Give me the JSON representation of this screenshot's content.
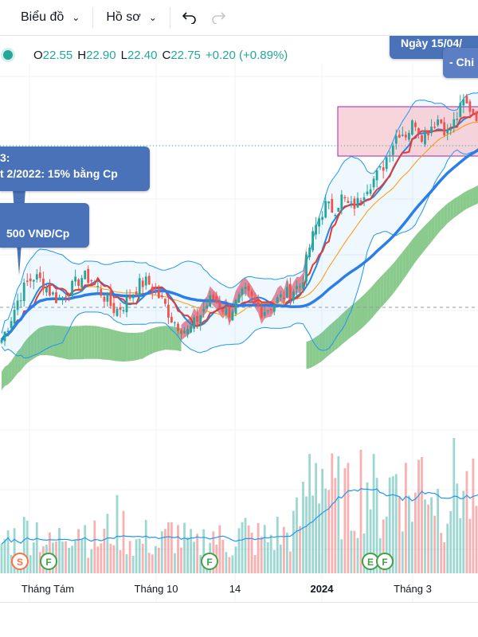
{
  "toolbar": {
    "chart_menu_label": "Biểu đồ",
    "profile_menu_label": "Hồ sơ",
    "undo_icon": "undo-icon",
    "redo_icon": "redo-icon",
    "chevron_icon": "chevron-down-icon"
  },
  "legend": {
    "open_key": "O",
    "open": "22.55",
    "high_key": "H",
    "high": "22.90",
    "low_key": "L",
    "low": "22.40",
    "close_key": "C",
    "close": "22.75",
    "change": "+0.20 (+0.89%)"
  },
  "callouts": {
    "top_right": "Ngày 15/04/",
    "top_right_sub": "- Chi",
    "dividend_line1": "3:",
    "dividend_line2": "t 2/2022: 15% bằng Cp",
    "cash_dividend": "500 VNĐ/Cp"
  },
  "colors": {
    "up": "#26a69a",
    "down": "#ef5350",
    "bollinger": "#2196f3",
    "ichimoku_bull": "#4caf50",
    "ichimoku_bear": "#e53950",
    "callout_bg": "#4a72b8",
    "zone_fill": "#f6c7cf",
    "zone_border": "#9c27b0"
  },
  "chart_data": {
    "type": "candlestick",
    "x_tick_labels": [
      "Tháng Tám",
      "Tháng 10",
      "14",
      "2024",
      "Tháng 3"
    ],
    "price_path": [
      17.5,
      18.2,
      19.0,
      19.6,
      19.9,
      19.7,
      19.3,
      19.0,
      19.2,
      19.6,
      19.9,
      19.8,
      19.4,
      19.0,
      18.6,
      18.8,
      19.2,
      19.6,
      19.7,
      19.3,
      18.9,
      18.3,
      18.0,
      17.8,
      18.2,
      18.7,
      19.1,
      18.8,
      18.5,
      18.9,
      19.3,
      19.0,
      18.6,
      18.7,
      19.0,
      19.2,
      19.4,
      19.6,
      21.0,
      22.0,
      22.6,
      22.4,
      22.9,
      22.5,
      22.7,
      23.3,
      23.6,
      24.0,
      24.8,
      25.4,
      25.3,
      25.8,
      25.2,
      25.6,
      25.9,
      25.3,
      25.8,
      26.5,
      26.2,
      25.9
    ],
    "volume_path": [
      0.25,
      0.3,
      0.28,
      0.35,
      0.4,
      0.3,
      0.22,
      0.27,
      0.36,
      0.45,
      0.38,
      0.3,
      0.26,
      0.33,
      0.42,
      0.37,
      0.28,
      0.24,
      0.3,
      0.22,
      0.26,
      0.34,
      0.3,
      0.25,
      0.2,
      0.28,
      0.32,
      0.27,
      0.22,
      0.3,
      0.35,
      0.26,
      0.3,
      0.28,
      0.33,
      0.3,
      0.38,
      0.45,
      0.85,
      1.0,
      0.78,
      0.6,
      0.65,
      0.55,
      0.72,
      0.8,
      0.62,
      0.55,
      0.7,
      0.88,
      0.66,
      0.6,
      0.95,
      0.75,
      0.58,
      0.62,
      0.82,
      0.7,
      0.6,
      0.55
    ],
    "events": [
      {
        "label": "S",
        "kind": "split"
      },
      {
        "label": "F",
        "kind": "financials"
      },
      {
        "label": "F",
        "kind": "financials"
      },
      {
        "label": "E",
        "kind": "earnings"
      },
      {
        "label": "F",
        "kind": "financials"
      }
    ]
  }
}
